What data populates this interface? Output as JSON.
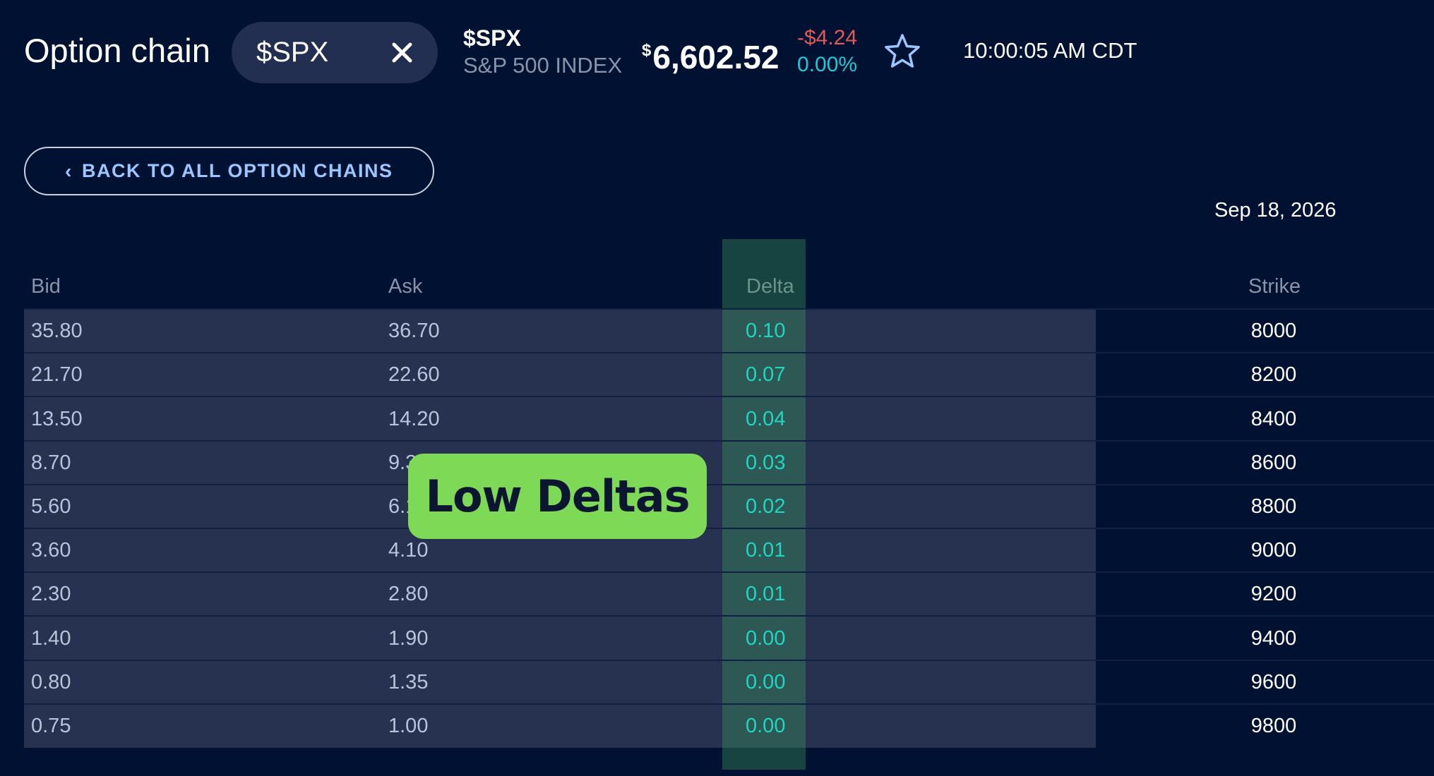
{
  "header": {
    "title": "Option chain",
    "search_value": "$SPX",
    "ticker_symbol": "$SPX",
    "ticker_name": "S&P 500 INDEX",
    "price_currency": "$",
    "price": "6,602.52",
    "change": "-$4.24",
    "change_percent": "0.00%",
    "timestamp": "10:00:05 AM CDT",
    "icons": {
      "clear": "close-icon",
      "favorite": "star-icon"
    }
  },
  "back_button": {
    "chevron": "‹",
    "label": "BACK TO ALL OPTION CHAINS"
  },
  "expiration_date": "Sep 18, 2026",
  "table": {
    "columns": [
      "Bid",
      "Ask",
      "Delta",
      "Strike"
    ],
    "rows": [
      {
        "bid": "35.80",
        "ask": "36.70",
        "delta": "0.10",
        "strike": "8000"
      },
      {
        "bid": "21.70",
        "ask": "22.60",
        "delta": "0.07",
        "strike": "8200"
      },
      {
        "bid": "13.50",
        "ask": "14.20",
        "delta": "0.04",
        "strike": "8400"
      },
      {
        "bid": "8.70",
        "ask": "9.3",
        "delta": "0.03",
        "strike": "8600"
      },
      {
        "bid": "5.60",
        "ask": "6.1",
        "delta": "0.02",
        "strike": "8800"
      },
      {
        "bid": "3.60",
        "ask": "4.10",
        "delta": "0.01",
        "strike": "9000"
      },
      {
        "bid": "2.30",
        "ask": "2.80",
        "delta": "0.01",
        "strike": "9200"
      },
      {
        "bid": "1.40",
        "ask": "1.90",
        "delta": "0.00",
        "strike": "9400"
      },
      {
        "bid": "0.80",
        "ask": "1.35",
        "delta": "0.00",
        "strike": "9600"
      },
      {
        "bid": "0.75",
        "ask": "1.00",
        "delta": "0.00",
        "strike": "9800"
      }
    ]
  },
  "callout": {
    "label": "Low Deltas"
  },
  "colors": {
    "background": "#001132",
    "panel": "#26324f",
    "accent_link": "#9cc6ff",
    "negative": "#e05a5a",
    "positive": "#1cc9d6",
    "delta_text": "#1fd6c4",
    "callout": "#7ed957"
  }
}
